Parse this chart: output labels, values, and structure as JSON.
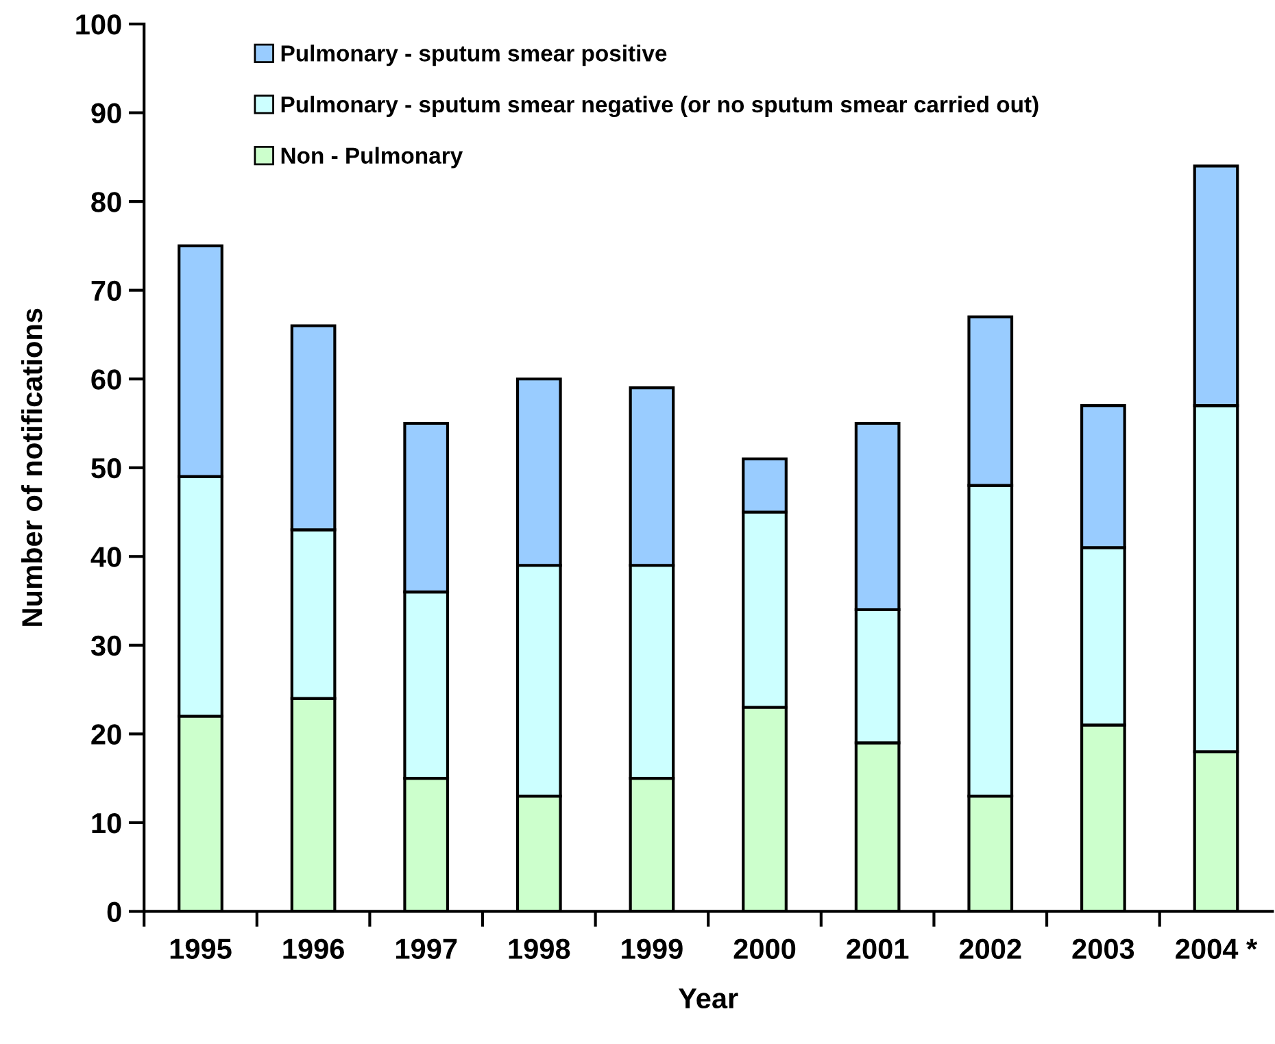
{
  "chart_data": {
    "type": "bar",
    "stacked": true,
    "xlabel": "Year",
    "ylabel": "Number of notifications",
    "categories": [
      "1995",
      "1996",
      "1997",
      "1998",
      "1999",
      "2000",
      "2001",
      "2002",
      "2003",
      "2004 *"
    ],
    "series": [
      {
        "name": "Non - Pulmonary",
        "color": "#ccffcc",
        "values": [
          22,
          24,
          15,
          13,
          15,
          23,
          19,
          13,
          21,
          18
        ]
      },
      {
        "name": "Pulmonary - sputum smear negative (or no sputum smear carried out)",
        "color": "#ccffff",
        "values": [
          27,
          19,
          21,
          26,
          24,
          22,
          15,
          35,
          20,
          39
        ]
      },
      {
        "name": "Pulmonary - sputum smear positive",
        "color": "#99ccff",
        "values": [
          26,
          23,
          19,
          21,
          20,
          6,
          21,
          19,
          16,
          27
        ]
      }
    ],
    "ylim": [
      0,
      100
    ],
    "yticks": [
      0,
      10,
      20,
      30,
      40,
      50,
      60,
      70,
      80,
      90,
      100
    ],
    "grid": false,
    "legend": "top left"
  }
}
